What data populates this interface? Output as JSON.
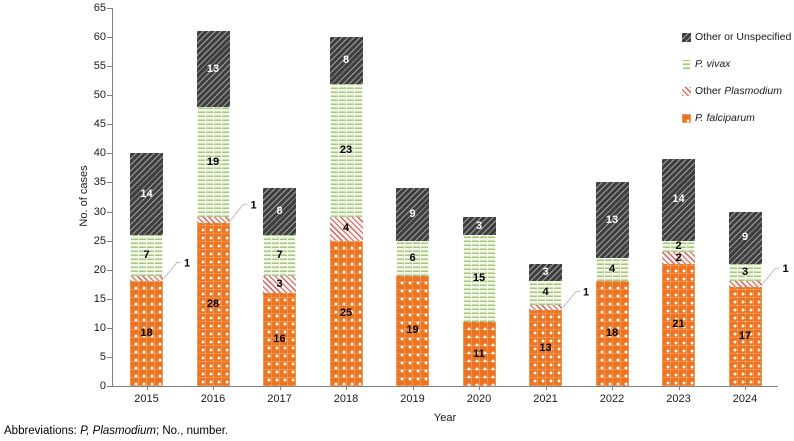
{
  "figure": {
    "footnote": {
      "prefix": "Abbreviations: ",
      "italic": "P, Plasmodium",
      "suffix": "; No., number."
    }
  },
  "legend": {
    "items": [
      {
        "key": "other",
        "prefix": "Other or Unspecified",
        "italic": ""
      },
      {
        "key": "vivax",
        "prefix": "",
        "italic": "P. vivax"
      },
      {
        "key": "plasmodium",
        "prefix": "Other ",
        "italic": "Plasmodium"
      },
      {
        "key": "falciparum",
        "prefix": "",
        "italic": "P. falciparum"
      }
    ]
  },
  "chart_data": {
    "type": "bar",
    "stacked": true,
    "title": "",
    "xlabel": "Year",
    "ylabel": "No. of cases",
    "ylim": [
      0,
      65
    ],
    "ytick_step": 5,
    "grid": false,
    "legend_position": "top-right",
    "categories": [
      "2015",
      "2016",
      "2017",
      "2018",
      "2019",
      "2020",
      "2021",
      "2022",
      "2023",
      "2024"
    ],
    "series": [
      {
        "name": "P. falciparum",
        "key": "falciparum",
        "label_color": "#000000",
        "values": [
          18,
          28,
          16,
          25,
          19,
          11,
          13,
          18,
          21,
          17
        ]
      },
      {
        "name": "Other Plasmodium",
        "key": "plasmodium",
        "label_color": "#000000",
        "callout_when_one": true,
        "values": [
          1,
          1,
          3,
          4,
          0,
          0,
          1,
          0,
          2,
          1
        ]
      },
      {
        "name": "P. vivax",
        "key": "vivax",
        "label_color": "#000000",
        "values": [
          7,
          19,
          7,
          23,
          6,
          15,
          4,
          4,
          2,
          3
        ]
      },
      {
        "name": "Other or Unspecified",
        "key": "other",
        "label_color": "#ffffff",
        "values": [
          14,
          13,
          8,
          8,
          9,
          3,
          3,
          13,
          14,
          9
        ]
      }
    ],
    "totals": [
      40,
      61,
      34,
      60,
      34,
      29,
      21,
      35,
      39,
      30
    ],
    "colors": {
      "falciparum_orange": "#ec7420",
      "vivax_green_stripe": "#a6c77d",
      "vivax_green_bg": "#f3f7e7",
      "plasmodium_pink_stripe": "#cd665f",
      "plasmodium_pink_bg": "#fcf3f1",
      "other_dark": "#3f3f3f",
      "axis": "#808080",
      "callout_line": "#bfbfbf",
      "label_on_dark": "#ffffff",
      "label_on_light": "#000000"
    }
  }
}
